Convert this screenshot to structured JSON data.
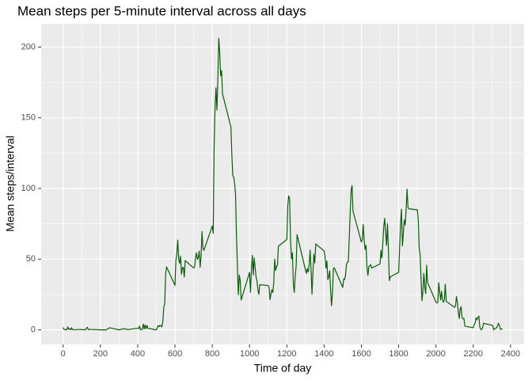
{
  "chart_data": {
    "type": "line",
    "title": "Mean steps per 5-minute interval across all days",
    "xlabel": "Time of day",
    "ylabel": "Mean steps/interval",
    "color": "#0a5c0a",
    "grid": true,
    "xlim": [
      -117.75,
      2472.75
    ],
    "ylim": [
      -10.3,
      216.5
    ],
    "xticks": [
      0,
      200,
      400,
      600,
      800,
      1000,
      1200,
      1400,
      1600,
      1800,
      2000,
      2200,
      2400
    ],
    "x_minor_ticks": [
      100,
      300,
      500,
      700,
      900,
      1100,
      1300,
      1500,
      1700,
      1900,
      2100,
      2300
    ],
    "yticks": [
      0,
      50,
      100,
      150,
      200
    ],
    "y_minor_ticks": [
      25,
      75,
      125,
      175
    ],
    "x": [
      0,
      5,
      10,
      15,
      20,
      25,
      30,
      35,
      40,
      45,
      50,
      55,
      100,
      105,
      110,
      115,
      120,
      125,
      130,
      135,
      140,
      145,
      150,
      200,
      230,
      250,
      300,
      330,
      335,
      340,
      345,
      400,
      405,
      410,
      415,
      420,
      425,
      430,
      435,
      440,
      445,
      450,
      455,
      500,
      505,
      510,
      515,
      520,
      525,
      530,
      535,
      540,
      545,
      550,
      555,
      600,
      605,
      610,
      615,
      620,
      625,
      630,
      635,
      640,
      645,
      650,
      655,
      700,
      705,
      710,
      715,
      720,
      725,
      730,
      735,
      740,
      745,
      750,
      755,
      800,
      805,
      810,
      815,
      820,
      825,
      830,
      835,
      840,
      845,
      850,
      855,
      900,
      905,
      910,
      915,
      920,
      925,
      930,
      935,
      940,
      945,
      950,
      955,
      1000,
      1005,
      1010,
      1015,
      1020,
      1025,
      1030,
      1035,
      1040,
      1045,
      1050,
      1055,
      1100,
      1105,
      1110,
      1115,
      1120,
      1125,
      1130,
      1135,
      1140,
      1145,
      1150,
      1155,
      1200,
      1205,
      1210,
      1215,
      1220,
      1225,
      1230,
      1235,
      1240,
      1245,
      1250,
      1255,
      1300,
      1305,
      1310,
      1315,
      1320,
      1325,
      1330,
      1335,
      1340,
      1345,
      1350,
      1355,
      1400,
      1405,
      1410,
      1415,
      1420,
      1425,
      1430,
      1435,
      1440,
      1445,
      1450,
      1455,
      1500,
      1505,
      1510,
      1515,
      1520,
      1525,
      1530,
      1535,
      1540,
      1545,
      1550,
      1555,
      1600,
      1605,
      1610,
      1615,
      1620,
      1625,
      1630,
      1635,
      1640,
      1645,
      1650,
      1655,
      1700,
      1705,
      1710,
      1715,
      1720,
      1725,
      1730,
      1735,
      1740,
      1745,
      1750,
      1755,
      1800,
      1805,
      1810,
      1815,
      1820,
      1825,
      1830,
      1835,
      1840,
      1845,
      1850,
      1855,
      1900,
      1905,
      1910,
      1915,
      1920,
      1925,
      1930,
      1935,
      1940,
      1945,
      1950,
      1955,
      2000,
      2005,
      2010,
      2015,
      2020,
      2025,
      2030,
      2035,
      2040,
      2045,
      2050,
      2055,
      2100,
      2105,
      2110,
      2115,
      2120,
      2125,
      2130,
      2135,
      2140,
      2145,
      2150,
      2155,
      2200,
      2205,
      2210,
      2215,
      2220,
      2225,
      2230,
      2235,
      2240,
      2245,
      2250,
      2255,
      2300,
      2305,
      2310,
      2315,
      2320,
      2325,
      2330,
      2335,
      2340,
      2345,
      2350,
      2355
    ],
    "values": [
      1.7,
      0.3,
      0.1,
      0.2,
      0.1,
      2.1,
      0.5,
      0.9,
      0,
      1.5,
      0.3,
      0.1,
      0.3,
      0,
      0.1,
      0.3,
      0,
      1.1,
      1.8,
      0.2,
      0.2,
      0.4,
      0.3,
      0,
      0,
      1.5,
      0,
      0.9,
      0.6,
      0.5,
      0.1,
      1.2,
      0.9,
      2.6,
      0,
      0.3,
      0.4,
      4.1,
      0.7,
      3.5,
      0.8,
      3.1,
      1.1,
      0,
      1.6,
      3,
      2.2,
      3.3,
      3,
      2.1,
      6.1,
      16,
      18.3,
      39.5,
      44.5,
      31.5,
      49.3,
      53.8,
      63.5,
      50,
      47.1,
      52.2,
      39.3,
      44,
      44.2,
      37.4,
      49,
      43.8,
      44.4,
      50.5,
      54.5,
      49.9,
      51,
      55.7,
      44.3,
      52.3,
      69.5,
      57.8,
      56.2,
      73.4,
      68.2,
      129.4,
      157.5,
      171.2,
      155.4,
      177.3,
      206.2,
      195.9,
      179.6,
      183.4,
      167,
      143.5,
      124,
      109.1,
      108.1,
      103.7,
      96,
      66.2,
      45.2,
      24.8,
      38.8,
      35,
      21.1,
      40.6,
      26.5,
      42.4,
      52.7,
      38.9,
      50.8,
      44.3,
      37.4,
      34.7,
      28.3,
      25.1,
      31.9,
      31.4,
      29.7,
      21.3,
      25.5,
      28.4,
      26.5,
      33.4,
      50,
      42,
      44.6,
      46,
      59.2,
      63.9,
      87.7,
      94.8,
      92.8,
      63.4,
      50.2,
      54.5,
      32.4,
      26.5,
      37.7,
      45.1,
      67.3,
      42.3,
      39.9,
      43.3,
      41,
      46.2,
      56.4,
      42.8,
      25.1,
      39.9,
      53.5,
      47.3,
      60.8,
      55.8,
      52,
      43.6,
      48.7,
      35.5,
      37.5,
      41.8,
      27.5,
      17.1,
      26.1,
      43.6,
      43.8,
      30,
      36.1,
      35.5,
      38.8,
      46,
      47.8,
      48.1,
      65.3,
      82.9,
      98.7,
      102.1,
      84,
      62.1,
      64.1,
      74.5,
      63.2,
      56.9,
      59.8,
      43.9,
      38.6,
      44.7,
      45.5,
      46.2,
      43.7,
      46.6,
      56.3,
      50.7,
      61.2,
      73,
      78.9,
      68.9,
      59.7,
      75.1,
      56.5,
      34.8,
      37.5,
      40.7,
      58,
      74.7,
      85.3,
      59.3,
      67.8,
      77.7,
      74.2,
      85.3,
      99.5,
      86.6,
      85.6,
      84.9,
      77.8,
      58,
      53.4,
      36.3,
      20.7,
      27.4,
      40,
      30.2,
      25.5,
      45.7,
      33.5,
      19.6,
      19,
      19.3,
      33.3,
      26.8,
      21.2,
      27.3,
      21.3,
      19.5,
      21.3,
      32.3,
      20.2,
      15.9,
      17.2,
      23.5,
      19.2,
      12.5,
      8,
      14.7,
      16.3,
      8.7,
      7.8,
      8.1,
      2.6,
      1.5,
      3.7,
      4.8,
      8.5,
      7.1,
      8.7,
      9.8,
      2.2,
      0.3,
      0.1,
      1.6,
      4.6,
      3.3,
      2.8,
      0,
      0.8,
      1,
      1.6,
      2.6,
      4.7,
      3.3,
      0.6,
      0.2,
      1.1
    ]
  }
}
